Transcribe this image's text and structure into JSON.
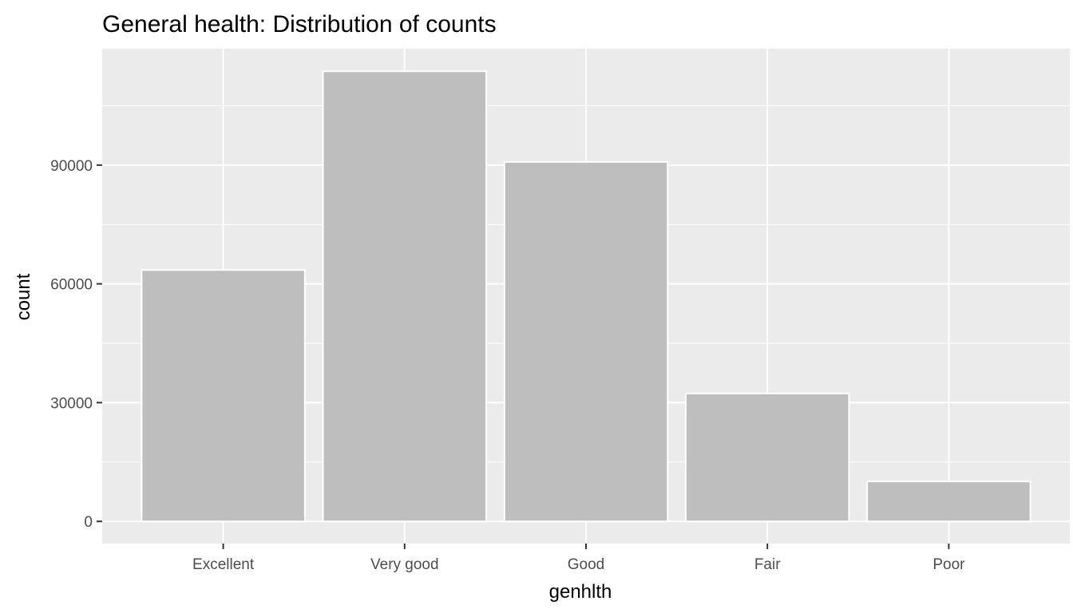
{
  "chart_data": {
    "type": "bar",
    "title": "General health: Distribution of counts",
    "xlabel": "genhlth",
    "ylabel": "count",
    "categories": [
      "Excellent",
      "Very good",
      "Good",
      "Fair",
      "Poor"
    ],
    "values": [
      63500,
      113700,
      90800,
      32300,
      10100
    ],
    "ylim": [
      -5600,
      119400
    ],
    "yticks": [
      0,
      30000,
      60000,
      90000
    ],
    "ytick_labels": [
      "0",
      "30000",
      "60000",
      "90000"
    ],
    "grid": true,
    "legend": "none",
    "colors": {
      "panel_background": "#EBEBEB",
      "grid_line": "#FFFFFF",
      "bar_fill": "#BEBEBE",
      "bar_outline": "#FFFFFF",
      "tick_text": "#4D4D4D",
      "tick_mark": "#333333"
    }
  }
}
